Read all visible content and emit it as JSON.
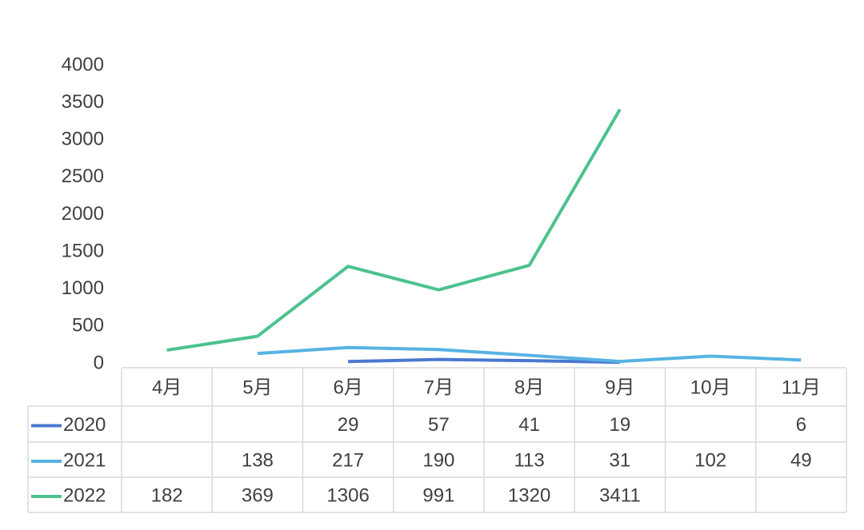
{
  "chart_data": {
    "type": "line",
    "categories": [
      "4月",
      "5月",
      "6月",
      "7月",
      "8月",
      "9月",
      "10月",
      "11月"
    ],
    "series": [
      {
        "name": "2020",
        "color": "#4a78d0",
        "values": [
          null,
          null,
          29,
          57,
          41,
          19,
          null,
          6
        ]
      },
      {
        "name": "2021",
        "color": "#57b3e3",
        "values": [
          null,
          138,
          217,
          190,
          113,
          31,
          102,
          49
        ]
      },
      {
        "name": "2022",
        "color": "#4cc28e",
        "values": [
          182,
          369,
          1306,
          991,
          1320,
          3411,
          null,
          null
        ]
      }
    ],
    "ylim": [
      0,
      4000
    ],
    "yticks": [
      0,
      500,
      1000,
      1500,
      2000,
      2500,
      3000,
      3500,
      4000
    ],
    "grid": false,
    "data_table": true
  }
}
